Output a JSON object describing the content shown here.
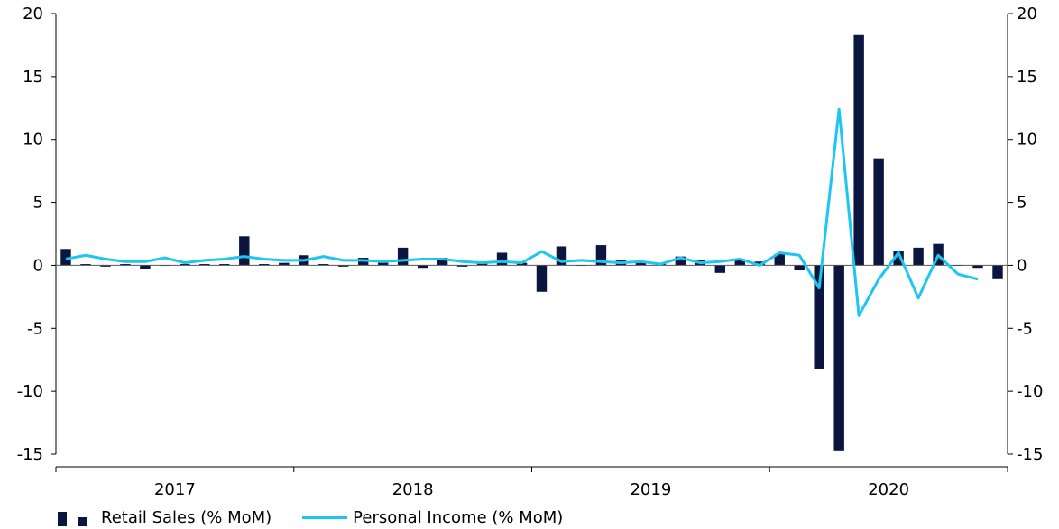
{
  "colors": {
    "bars": "#0b1640",
    "line": "#1cc6f0",
    "axis": "#000000"
  },
  "chart_data": {
    "type": "bar+line",
    "x_labels": [
      "2017",
      "2018",
      "2019",
      "2020"
    ],
    "ylim": [
      -15,
      20
    ],
    "y_ticks": [
      20,
      15,
      10,
      5,
      0,
      -5,
      -10,
      -15
    ],
    "grid": false,
    "legend_position": "bottom-left",
    "months_per_year": 12,
    "start_year": 2017,
    "series": [
      {
        "name": "Retail Sales (% MoM)",
        "type": "bar",
        "axis": "left",
        "values": [
          1.3,
          0.1,
          -0.1,
          0.1,
          -0.3,
          0.0,
          0.1,
          0.1,
          0.1,
          2.3,
          0.1,
          0.2,
          0.8,
          0.1,
          -0.1,
          0.6,
          0.2,
          1.4,
          -0.2,
          0.6,
          -0.1,
          0.2,
          1.0,
          0.2,
          -2.1,
          1.5,
          0.0,
          1.6,
          0.4,
          0.3,
          0.2,
          0.7,
          0.4,
          -0.6,
          0.5,
          0.3,
          0.9,
          -0.4,
          -8.2,
          -14.7,
          18.3,
          8.5,
          1.1,
          1.4,
          1.7,
          0.0,
          -0.2,
          -1.1
        ]
      },
      {
        "name": "Personal Income (% MoM)",
        "type": "line",
        "axis": "left",
        "values": [
          0.5,
          0.8,
          0.5,
          0.3,
          0.3,
          0.6,
          0.2,
          0.4,
          0.5,
          0.7,
          0.5,
          0.4,
          0.4,
          0.7,
          0.4,
          0.4,
          0.3,
          0.4,
          0.5,
          0.5,
          0.3,
          0.2,
          0.3,
          0.2,
          1.1,
          0.3,
          0.4,
          0.3,
          0.2,
          0.3,
          0.1,
          0.6,
          0.2,
          0.3,
          0.5,
          0.0,
          1.0,
          0.8,
          -1.8,
          12.4,
          -4.0,
          -1.1,
          1.0,
          -2.6,
          0.8,
          -0.7,
          -1.1,
          null
        ]
      }
    ]
  }
}
